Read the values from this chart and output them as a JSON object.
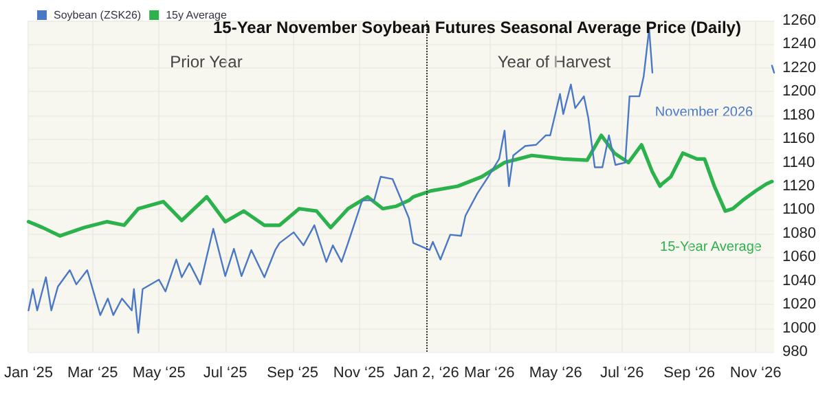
{
  "chart_data": {
    "type": "line",
    "title": "15-Year November Soybean Futures Seasonal Average Price (Daily)",
    "annotations": [
      "Prior Year",
      "Year of Harvest",
      "November 2026",
      "15-Year Average"
    ],
    "series": [
      {
        "name": "Soybean (ZSK26)",
        "color": "#4a78c4",
        "x": [
          "2025-01-01",
          "2025-01-05",
          "2025-01-09",
          "2025-01-17",
          "2025-01-22",
          "2025-01-28",
          "2025-02-08",
          "2025-02-14",
          "2025-02-24",
          "2025-03-08",
          "2025-03-15",
          "2025-03-20",
          "2025-03-28",
          "2025-04-06",
          "2025-04-08",
          "2025-04-12",
          "2025-04-16",
          "2025-05-01",
          "2025-05-07",
          "2025-05-17",
          "2025-05-22",
          "2025-05-29",
          "2025-06-08",
          "2025-06-20",
          "2025-07-01",
          "2025-07-09",
          "2025-07-16",
          "2025-07-25",
          "2025-08-06",
          "2025-08-16",
          "2025-08-20",
          "2025-09-02",
          "2025-09-11",
          "2025-09-21",
          "2025-10-02",
          "2025-10-08",
          "2025-10-16",
          "2025-10-22",
          "2025-11-04",
          "2025-11-15",
          "2025-11-21",
          "2025-12-02",
          "2025-12-17",
          "2025-12-21",
          "2026-01-05",
          "2026-01-08",
          "2026-01-15",
          "2026-01-24",
          "2026-02-03",
          "2026-02-07",
          "2026-02-18",
          "2026-02-28",
          "2026-03-10",
          "2026-03-15",
          "2026-03-19",
          "2026-03-23",
          "2026-04-03",
          "2026-04-13",
          "2026-04-22",
          "2026-04-26",
          "2026-05-05",
          "2026-05-08",
          "2026-05-15",
          "2026-05-19",
          "2026-05-27",
          "2026-05-31",
          "2026-06-06",
          "2026-06-13",
          "2026-06-19",
          "2026-06-25",
          "2026-07-04",
          "2026-07-08",
          "2026-07-17",
          "2026-07-21",
          "2026-07-26",
          "2026-07-29",
          "2026-08-01",
          "2026-11-16",
          "2026-11-18"
        ],
        "values": [
          1015,
          1033,
          1015,
          1043,
          1015,
          1035,
          1049,
          1037,
          1049,
          1011,
          1025,
          1011,
          1025,
          1015,
          1033,
          996,
          1033,
          1041,
          1031,
          1058,
          1043,
          1055,
          1037,
          1084,
          1044,
          1067,
          1044,
          1066,
          1043,
          1066,
          1072,
          1081,
          1070,
          1087,
          1056,
          1070,
          1056,
          1072,
          1108,
          1108,
          1128,
          1126,
          1093,
          1072,
          1066,
          1073,
          1058,
          1079,
          1078,
          1095,
          1114,
          1128,
          1143,
          1167,
          1120,
          1146,
          1154,
          1155,
          1163,
          1163,
          1198,
          1181,
          1206,
          1186,
          1196,
          1178,
          1136,
          1136,
          1163,
          1138,
          1140,
          1196,
          1196,
          1213,
          1253,
          1216,
          null,
          1222,
          1216
        ]
      },
      {
        "name": "15y Average",
        "color": "#2bb24c",
        "x": [
          "2025-01-01",
          "2025-01-14",
          "2025-01-30",
          "2025-02-21",
          "2025-03-14",
          "2025-03-30",
          "2025-04-12",
          "2025-05-05",
          "2025-05-22",
          "2025-06-14",
          "2025-07-01",
          "2025-07-18",
          "2025-08-06",
          "2025-08-20",
          "2025-09-07",
          "2025-09-23",
          "2025-10-06",
          "2025-10-22",
          "2025-11-09",
          "2025-11-23",
          "2025-12-05",
          "2025-12-17",
          "2025-12-21",
          "2026-01-06",
          "2026-01-31",
          "2026-02-22",
          "2026-03-15",
          "2026-04-09",
          "2026-05-08",
          "2026-05-30",
          "2026-06-12",
          "2026-06-24",
          "2026-07-07",
          "2026-07-19",
          "2026-07-29",
          "2026-08-05",
          "2026-08-07",
          "2026-08-15",
          "2026-08-26",
          "2026-09-08",
          "2026-09-15",
          "2026-09-24",
          "2026-10-04",
          "2026-10-11",
          "2026-10-20",
          "2026-11-01",
          "2026-11-11",
          "2026-11-16"
        ],
        "values": [
          1090,
          1085,
          1078,
          1085,
          1090,
          1087,
          1101,
          1107,
          1091,
          1111,
          1090,
          1099,
          1087,
          1087,
          1101,
          1099,
          1085,
          1101,
          1111,
          1101,
          1103,
          1108,
          1111,
          1116,
          1120,
          1128,
          1140,
          1146,
          1143,
          1142,
          1163,
          1148,
          1140,
          1155,
          1132,
          1120,
          1122,
          1128,
          1148,
          1143,
          1143,
          1120,
          1099,
          1101,
          1108,
          1116,
          1122,
          1124
        ]
      }
    ],
    "xlim": [
      "2025-01-01",
      "2026-11-18"
    ],
    "xticks": [
      {
        "value": "2025-01-01",
        "label": "Jan ‘25"
      },
      {
        "value": "2025-03-01",
        "label": "Mar ‘25"
      },
      {
        "value": "2025-05-01",
        "label": "May ‘25"
      },
      {
        "value": "2025-07-01",
        "label": "Jul ‘25"
      },
      {
        "value": "2025-09-01",
        "label": "Sep ‘25"
      },
      {
        "value": "2025-11-01",
        "label": "Nov ‘25"
      },
      {
        "value": "2026-01-02",
        "label": "Jan 2, ‘26"
      },
      {
        "value": "2026-03-01",
        "label": "Mar ‘26"
      },
      {
        "value": "2026-05-01",
        "label": "May ‘26"
      },
      {
        "value": "2026-07-01",
        "label": "Jul ‘26"
      },
      {
        "value": "2026-09-01",
        "label": "Sep ‘26"
      },
      {
        "value": "2026-11-01",
        "label": "Nov ‘26"
      }
    ],
    "ylim": [
      980,
      1260
    ],
    "yticks": [
      980,
      1000,
      1020,
      1040,
      1060,
      1080,
      1100,
      1120,
      1140,
      1160,
      1180,
      1200,
      1220,
      1240,
      1260
    ],
    "ref_lines": [
      {
        "axis": "x",
        "value": "2026-01-02",
        "line_style": "dotted",
        "color": "#333333"
      }
    ],
    "grid": true,
    "legend": "top left",
    "marker": "none",
    "line_style": "solid"
  }
}
